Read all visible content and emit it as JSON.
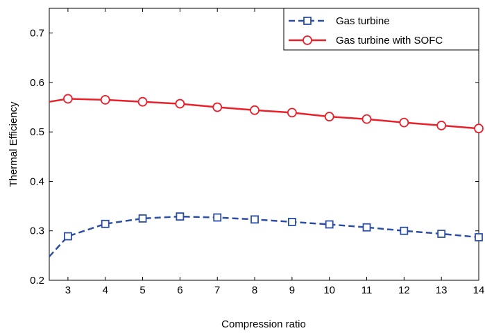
{
  "chart_data": {
    "type": "line",
    "title": "",
    "xlabel": "Compression ratio",
    "ylabel": "Thermal Efficiency",
    "xlim": [
      2.5,
      14
    ],
    "ylim": [
      0.2,
      0.75
    ],
    "xticks": [
      3,
      4,
      5,
      6,
      7,
      8,
      9,
      10,
      11,
      12,
      13,
      14
    ],
    "yticks": [
      0.2,
      0.3,
      0.4,
      0.5,
      0.6,
      0.7
    ],
    "xtick_labels": [
      "3",
      "4",
      "5",
      "6",
      "7",
      "8",
      "9",
      "10",
      "11",
      "12",
      "13",
      "14"
    ],
    "ytick_labels": [
      "0.2",
      "0.3",
      "0.4",
      "0.5",
      "0.6",
      "0.7"
    ],
    "grid": false,
    "legend_position": "top-right",
    "series": [
      {
        "name": "Gas turbine",
        "color": "#2b4ea3",
        "line_style": "dashed",
        "marker": "square",
        "x": [
          2.5,
          3,
          4,
          5,
          6,
          7,
          8,
          9,
          10,
          11,
          12,
          13,
          14
        ],
        "y": [
          0.248,
          0.289,
          0.314,
          0.325,
          0.329,
          0.327,
          0.323,
          0.318,
          0.313,
          0.307,
          0.3,
          0.294,
          0.287
        ],
        "marker_x": [
          3,
          4,
          5,
          6,
          7,
          8,
          9,
          10,
          11,
          12,
          13,
          14
        ]
      },
      {
        "name": "Gas turbine with SOFC",
        "color": "#e8202a",
        "line_style": "solid",
        "marker": "circle",
        "x": [
          2.5,
          3,
          4,
          5,
          6,
          7,
          8,
          9,
          10,
          11,
          12,
          13,
          14
        ],
        "y": [
          0.561,
          0.567,
          0.565,
          0.561,
          0.557,
          0.55,
          0.544,
          0.539,
          0.531,
          0.526,
          0.519,
          0.513,
          0.507
        ],
        "marker_x": [
          3,
          4,
          5,
          6,
          7,
          8,
          9,
          10,
          11,
          12,
          13,
          14
        ]
      }
    ]
  }
}
